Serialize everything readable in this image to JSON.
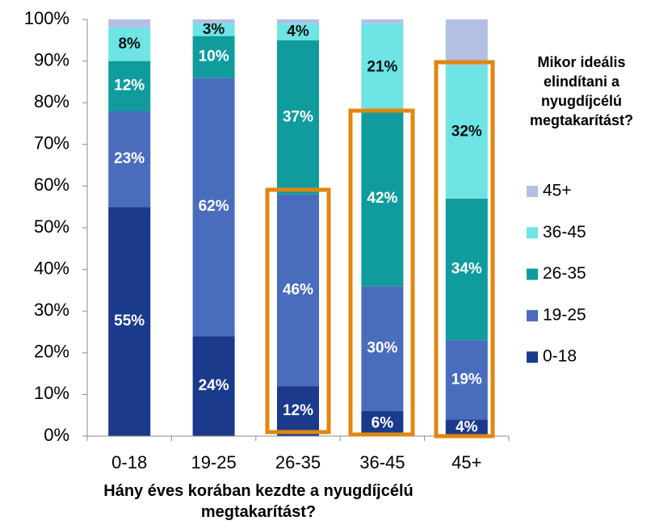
{
  "chart_data": {
    "type": "stacked_bar",
    "xlabel": "Hány éves korában kezdte a nyugdíjcélú megtakarítást?",
    "legend_title": "Mikor ideális elindítani a nyugdíjcélú megtakarítást?",
    "categories": [
      "0-18",
      "19-25",
      "26-35",
      "36-45",
      "45+"
    ],
    "series": [
      {
        "name": "0-18",
        "color": "#1b3a8c",
        "values": [
          55,
          24,
          12,
          6,
          4
        ],
        "value_labels": [
          "55%",
          "24%",
          "12%",
          "6%",
          "4%"
        ]
      },
      {
        "name": "19-25",
        "color": "#4a6cbc",
        "values": [
          23,
          62,
          46,
          30,
          19
        ],
        "value_labels": [
          "23%",
          "62%",
          "46%",
          "30%",
          "19%"
        ]
      },
      {
        "name": "26-35",
        "color": "#109c9c",
        "values": [
          12,
          10,
          37,
          42,
          34
        ],
        "value_labels": [
          "12%",
          "10%",
          "37%",
          "42%",
          "34%"
        ]
      },
      {
        "name": "36-45",
        "color": "#6fe4e4",
        "values": [
          8,
          3,
          4,
          21,
          32
        ],
        "value_labels": [
          "8%",
          "3%",
          "4%",
          "21%",
          "32%"
        ]
      },
      {
        "name": "45+",
        "color": "#b3bfe3",
        "values": [
          2,
          1,
          1,
          1,
          11
        ],
        "value_labels": [
          null,
          null,
          null,
          null,
          null
        ]
      }
    ],
    "ylim": [
      0,
      100
    ],
    "yticks": [
      {
        "value": 0,
        "label": "0%"
      },
      {
        "value": 10,
        "label": "10%"
      },
      {
        "value": 20,
        "label": "20%"
      },
      {
        "value": 30,
        "label": "30%"
      },
      {
        "value": 40,
        "label": "40%"
      },
      {
        "value": 50,
        "label": "50%"
      },
      {
        "value": 60,
        "label": "60%"
      },
      {
        "value": 70,
        "label": "70%"
      },
      {
        "value": 80,
        "label": "80%"
      },
      {
        "value": 90,
        "label": "90%"
      },
      {
        "value": 100,
        "label": "100%"
      }
    ],
    "legend": "right"
  }
}
